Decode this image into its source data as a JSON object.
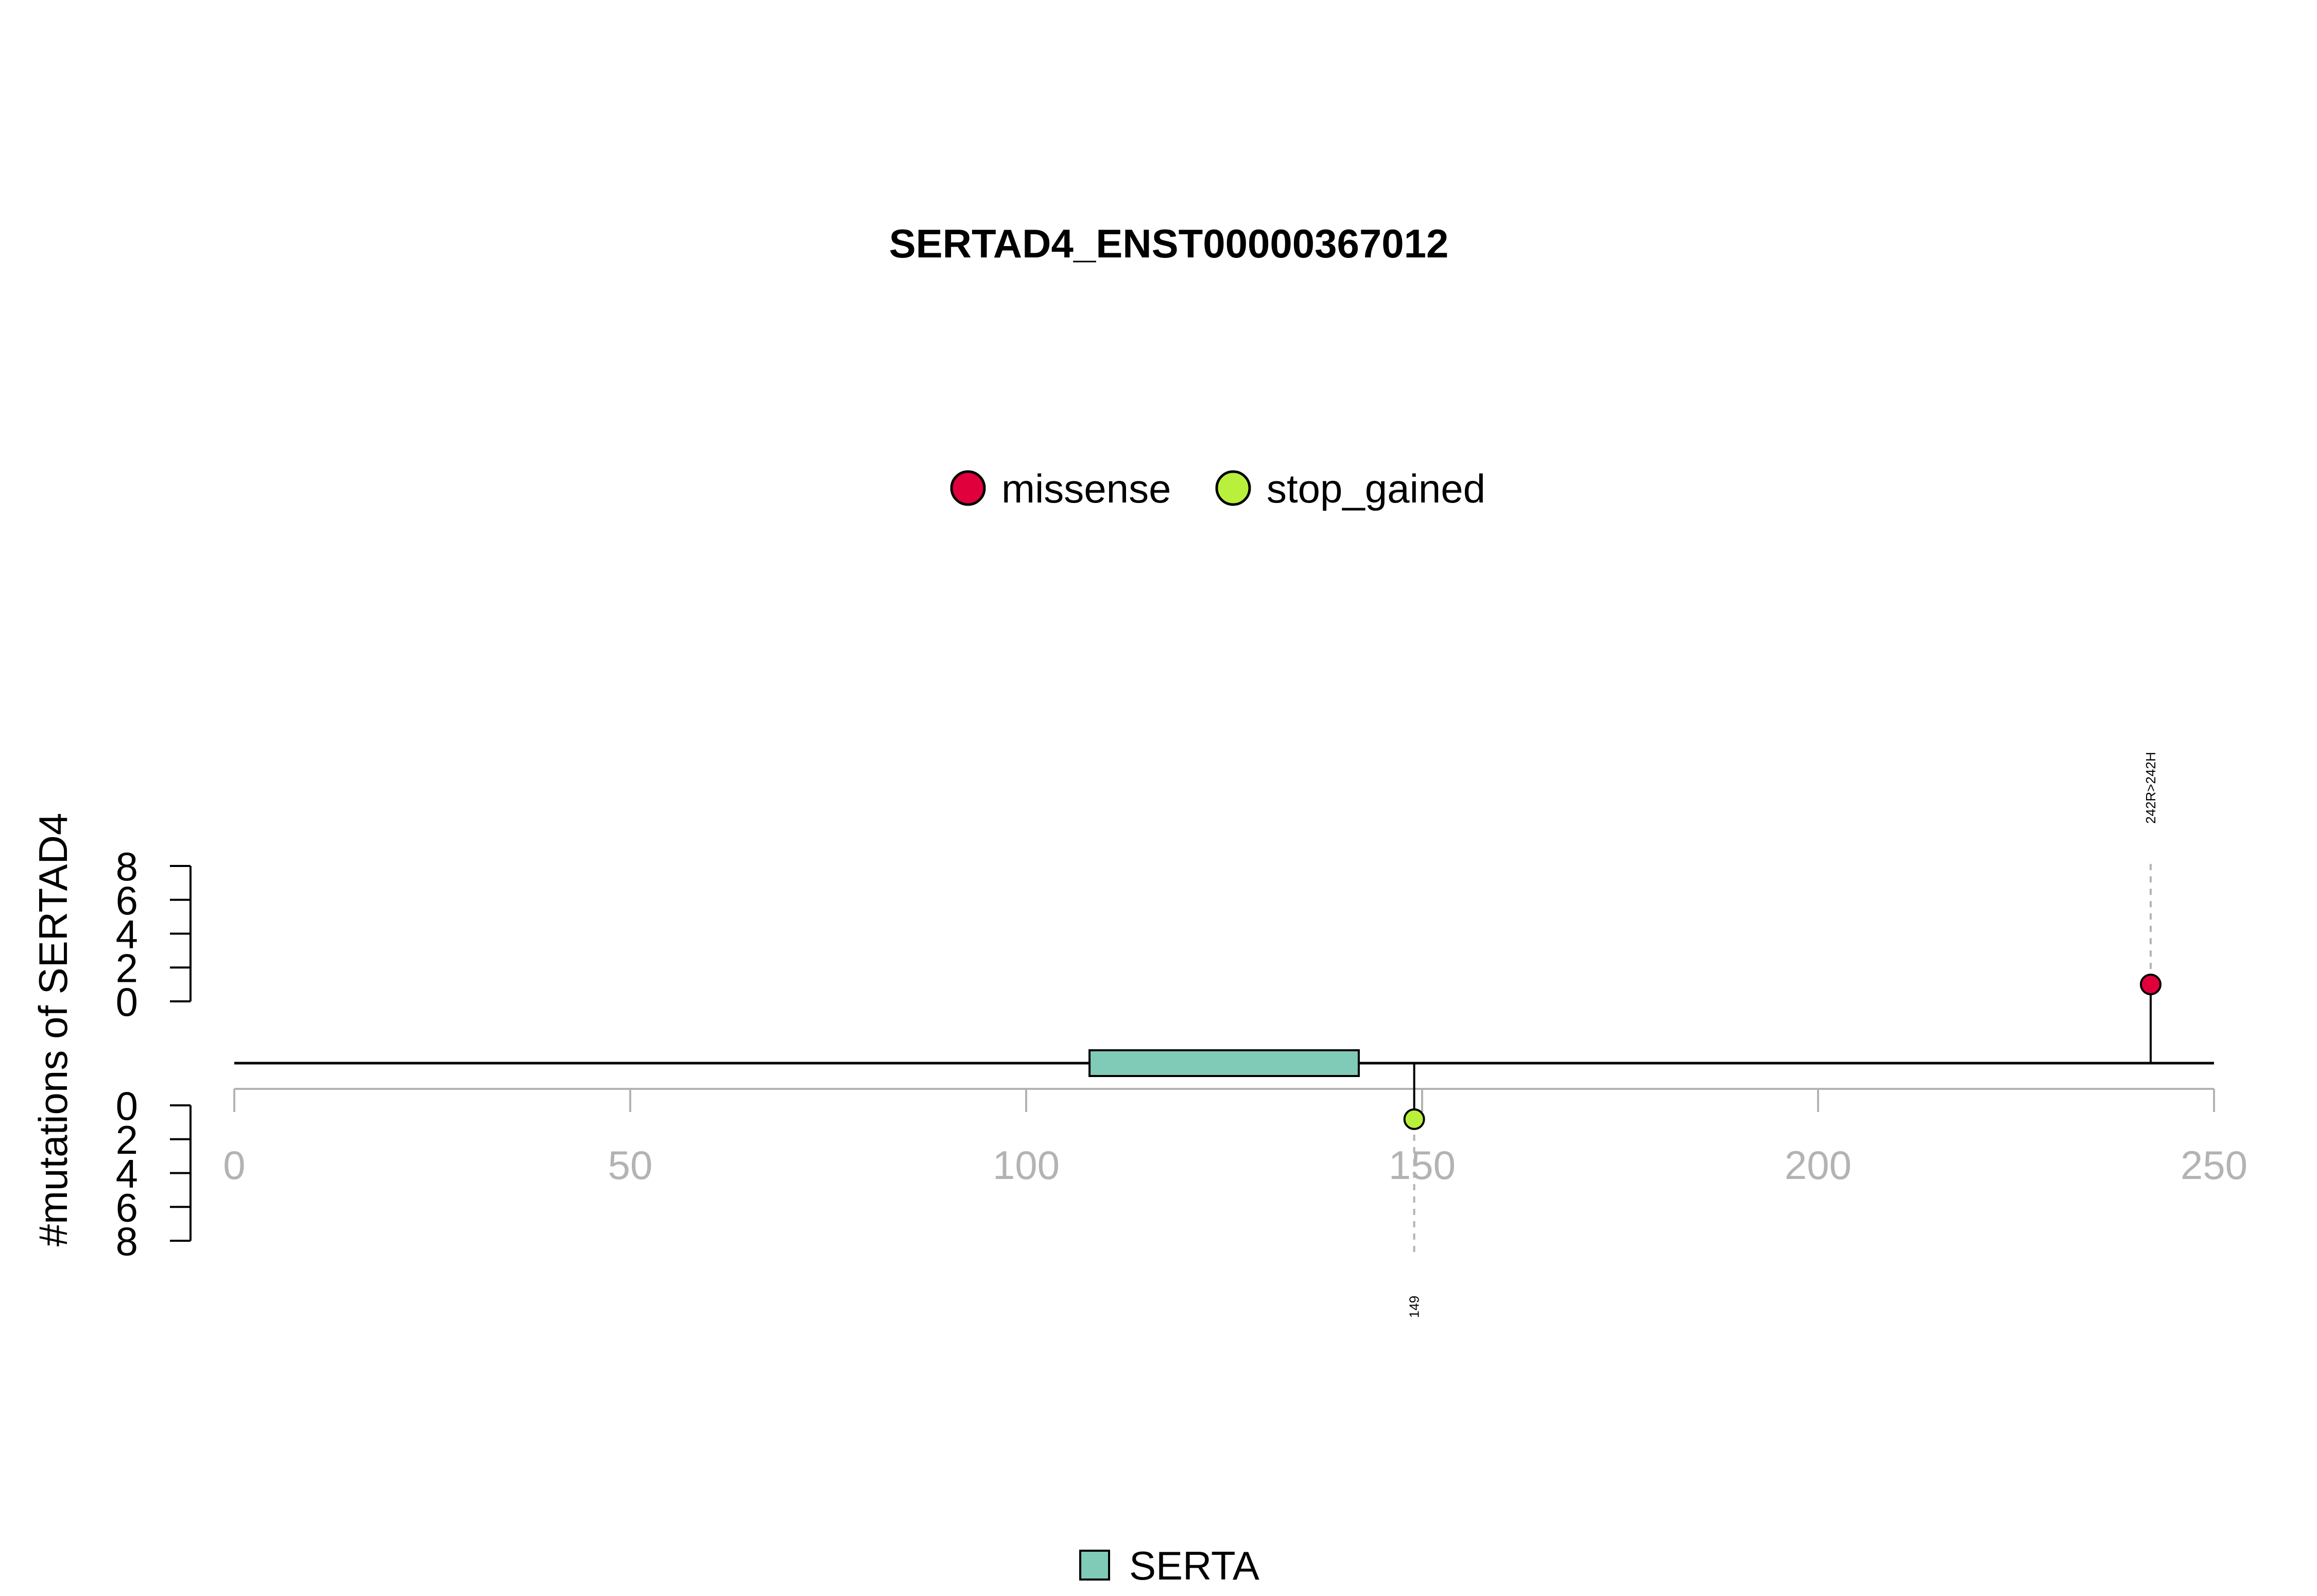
{
  "chart_data": {
    "type": "lollipop",
    "title": "SERTAD4_ENST00000367012",
    "ylabel": "#mutations of SERTAD4",
    "xlim": [
      0,
      250
    ],
    "x_ticks": [
      "0",
      "50",
      "100",
      "150",
      "200",
      "250"
    ],
    "y_ticks_top": [
      "0",
      "2",
      "4",
      "6",
      "8"
    ],
    "y_ticks_bottom": [
      "0",
      "2",
      "4",
      "6",
      "8"
    ],
    "ylim": [
      0,
      8
    ],
    "mutation_legend": [
      {
        "name": "missense",
        "color": "#e0003c"
      },
      {
        "name": "stop_gained",
        "color": "#b8f03c"
      }
    ],
    "domain_legend": [
      {
        "name": "SERTA",
        "color": "#7fcbb7"
      }
    ],
    "domains": [
      {
        "name": "SERTA",
        "start": 108,
        "end": 142,
        "color": "#7fcbb7"
      }
    ],
    "mutations": [
      {
        "position": 242,
        "count": 1,
        "type": "missense",
        "side": "top",
        "label": "242R>242H"
      },
      {
        "position": 149,
        "count": 1,
        "type": "stop_gained",
        "side": "bottom",
        "label": "149"
      }
    ]
  }
}
